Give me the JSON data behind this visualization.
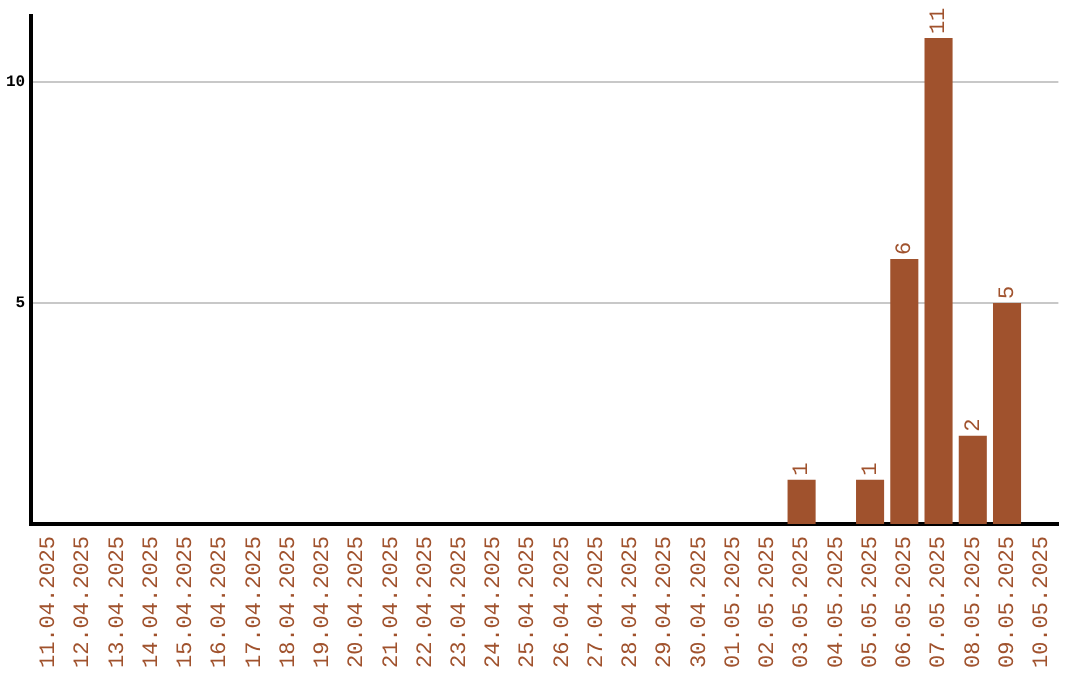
{
  "chart_data": {
    "type": "bar",
    "categories": [
      "11.04.2025",
      "12.04.2025",
      "13.04.2025",
      "14.04.2025",
      "15.04.2025",
      "16.04.2025",
      "17.04.2025",
      "18.04.2025",
      "19.04.2025",
      "20.04.2025",
      "21.04.2025",
      "22.04.2025",
      "23.04.2025",
      "24.04.2025",
      "25.04.2025",
      "26.04.2025",
      "27.04.2025",
      "28.04.2025",
      "29.04.2025",
      "30.04.2025",
      "01.05.2025",
      "02.05.2025",
      "03.05.2025",
      "04.05.2025",
      "05.05.2025",
      "06.05.2025",
      "07.05.2025",
      "08.05.2025",
      "09.05.2025",
      "10.05.2025"
    ],
    "values": [
      0,
      0,
      0,
      0,
      0,
      0,
      0,
      0,
      0,
      0,
      0,
      0,
      0,
      0,
      0,
      0,
      0,
      0,
      0,
      0,
      0,
      0,
      1,
      0,
      1,
      6,
      11,
      2,
      5,
      0
    ],
    "value_labels": [
      null,
      null,
      null,
      null,
      null,
      null,
      null,
      null,
      null,
      null,
      null,
      null,
      null,
      null,
      null,
      null,
      null,
      null,
      null,
      null,
      null,
      null,
      "1",
      null,
      "1",
      "6",
      "11",
      "2",
      "5",
      null
    ],
    "color": "#a0522d",
    "ylim": [
      0,
      11.5
    ],
    "yticks": [
      5,
      10
    ],
    "grid": "y",
    "legend": false
  }
}
